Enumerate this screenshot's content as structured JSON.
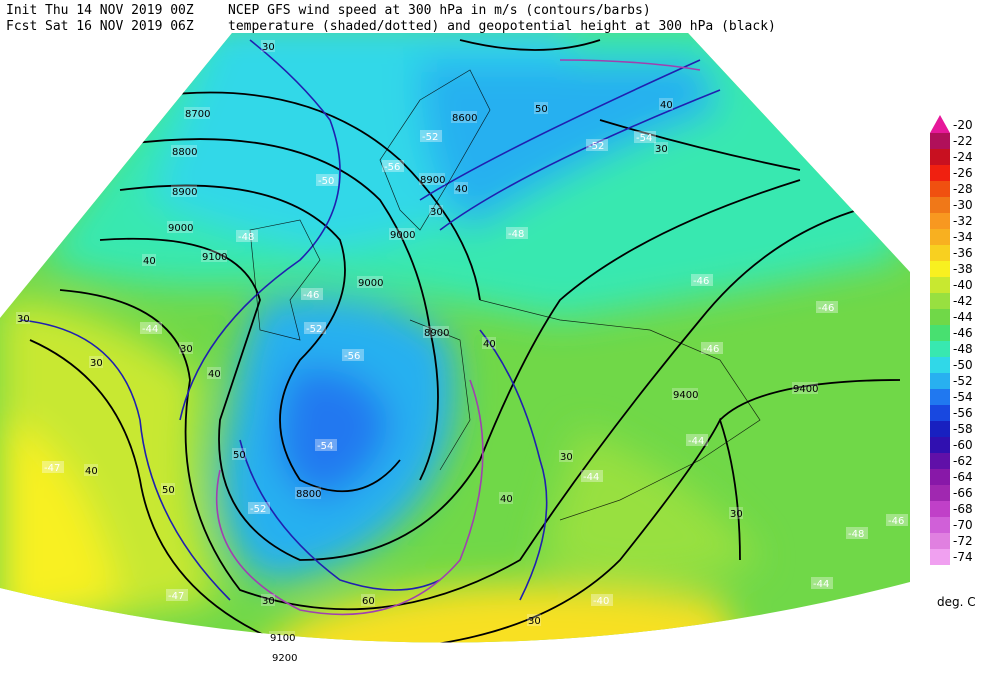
{
  "header": {
    "line1": {
      "label": "Init",
      "date": "Thu 14 NOV 2019 00Z",
      "text": "NCEP GFS wind speed at 300 hPa in m/s (contours/barbs)"
    },
    "line2": {
      "label": "Fcst",
      "date": "Sat 16 NOV 2019 06Z",
      "text": "temperature (shaded/dotted) and geopotential height at 300 hPa (black)"
    }
  },
  "legend": {
    "levels": [
      -20,
      -22,
      -24,
      -26,
      -28,
      -30,
      -32,
      -34,
      -36,
      -38,
      -40,
      -42,
      -44,
      -46,
      -48,
      -50,
      -52,
      -54,
      -56,
      -58,
      -60,
      -62,
      -64,
      -66,
      -68,
      -70,
      -72,
      -74
    ],
    "colors": [
      "#e6189a",
      "#b0105a",
      "#c81020",
      "#f02010",
      "#f05010",
      "#f07818",
      "#f89820",
      "#f8b020",
      "#f8d020",
      "#f8f020",
      "#c8e830",
      "#98e040",
      "#70d848",
      "#48e070",
      "#38e8b0",
      "#30d8e8",
      "#28b0f0",
      "#2078f0",
      "#1848e0",
      "#1820c0",
      "#3010b0",
      "#6010a8",
      "#8818a8",
      "#a028b0",
      "#c040c8",
      "#d060d8",
      "#e080e0",
      "#f0a0f0"
    ],
    "unit": "deg. C"
  },
  "map_labels": {
    "heights": [
      8700,
      8800,
      8900,
      9000,
      9100,
      8600,
      8900,
      9000,
      9000,
      8900,
      8800,
      9400,
      9400,
      9100,
      9200
    ],
    "winds": [
      30,
      30,
      30,
      30,
      40,
      40,
      40,
      50,
      50,
      40,
      30,
      40,
      40,
      30,
      50,
      30,
      40,
      30,
      60,
      30,
      30
    ],
    "temperatures": [
      -52,
      -56,
      -50,
      -48,
      -46,
      -52,
      -54,
      -52,
      -44,
      -47,
      -47,
      -46,
      -46,
      -46,
      -44,
      -44,
      -46,
      -48,
      -44,
      -40,
      -52,
      -54,
      -48,
      -56
    ]
  }
}
